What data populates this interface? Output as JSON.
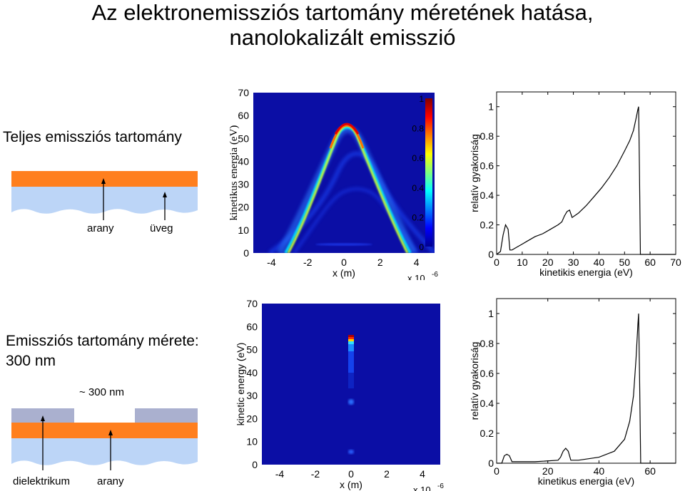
{
  "title": {
    "line1": "Az elektronemissziós tartomány méretének hatása,",
    "line2": "nanolokalizált emisszió"
  },
  "row1": {
    "label": "Teljes emissziós tartomány",
    "diagram": {
      "label_gold": "arany",
      "label_glass": "üveg"
    }
  },
  "row2": {
    "label_line1": "Emissziós tartomány mérete:",
    "label_line2": "300 nm",
    "diagram": {
      "label_width": "~ 300 nm",
      "label_dielectric": "dielektrikum",
      "label_gold": "arany"
    }
  },
  "colors": {
    "gold": "#ff7f1e",
    "glass": "#bcd5f7",
    "dielectric": "#aab0cf",
    "heatmap_bg": "#0b0ea5"
  },
  "chart_data": [
    {
      "id": "heatmap-top",
      "type": "heatmap",
      "xlabel": "x (m)",
      "xscale_label": "x 10",
      "xscale_exp": "-6",
      "ylabel": "kinetikus energia (eV)",
      "xlim": [
        -5,
        5
      ],
      "ylim": [
        0,
        70
      ],
      "xticks": [
        "-4",
        "-2",
        "0",
        "2",
        "4"
      ],
      "yticks": [
        "0",
        "10",
        "20",
        "30",
        "40",
        "50",
        "60",
        "70"
      ],
      "colorbar_ticks": [
        "0",
        "0.2",
        "0.4",
        "0.6",
        "0.8",
        "1"
      ],
      "colorbar": true
    },
    {
      "id": "line-top",
      "type": "line",
      "xlabel": "kinetikis energia (eV)",
      "ylabel": "relatív gyakoriság",
      "xlim": [
        0,
        70
      ],
      "ylim": [
        0,
        1.1
      ],
      "xticks": [
        "0",
        "10",
        "20",
        "30",
        "40",
        "50",
        "60",
        "70"
      ],
      "yticks": [
        "0",
        "0.2",
        "0.4",
        "0.6",
        "0.8",
        "1"
      ],
      "series": [
        {
          "x": [
            0,
            1.5,
            2.5,
            3.5,
            4.5,
            5.2,
            6,
            8,
            10,
            12,
            15,
            18,
            21,
            24,
            25.5,
            26.5,
            27.5,
            28.5,
            29.5,
            32,
            35,
            38,
            41,
            44,
            47,
            50,
            52,
            53.5,
            54.5,
            55.2,
            55.5,
            55.8,
            56.2,
            70
          ],
          "y": [
            0,
            0.02,
            0.13,
            0.2,
            0.17,
            0.03,
            0.03,
            0.05,
            0.07,
            0.09,
            0.12,
            0.14,
            0.17,
            0.2,
            0.22,
            0.26,
            0.29,
            0.3,
            0.25,
            0.28,
            0.33,
            0.39,
            0.45,
            0.52,
            0.6,
            0.7,
            0.77,
            0.84,
            0.92,
            0.98,
            1.0,
            0.6,
            0.0,
            0.0
          ]
        }
      ]
    },
    {
      "id": "heatmap-bottom",
      "type": "heatmap",
      "xlabel": "x (m)",
      "xscale_label": "x 10",
      "xscale_exp": "-6",
      "ylabel": "kinetic energy (eV)",
      "xlim": [
        -5,
        5
      ],
      "ylim": [
        0,
        70
      ],
      "xticks": [
        "-4",
        "-2",
        "0",
        "2",
        "4"
      ],
      "yticks": [
        "0",
        "10",
        "20",
        "30",
        "40",
        "50",
        "60",
        "70"
      ],
      "colorbar": false
    },
    {
      "id": "line-bottom",
      "type": "line",
      "xlabel": "kinetikus energia (eV)",
      "ylabel": "relatív gyakoriság",
      "xlim": [
        0,
        70
      ],
      "ylim": [
        0,
        1.1
      ],
      "xticks": [
        "0",
        "20",
        "40",
        "60"
      ],
      "yticks": [
        "0",
        "0.2",
        "0.4",
        "0.6",
        "0.8",
        "1"
      ],
      "series": [
        {
          "x": [
            0,
            2,
            3,
            4,
            5,
            6,
            8,
            15,
            24,
            25,
            26,
            27,
            28,
            29,
            32,
            40,
            46,
            50,
            52,
            53.5,
            54.5,
            55.2,
            55.5,
            55.9,
            56.3,
            70
          ],
          "y": [
            0,
            0.0,
            0.05,
            0.06,
            0.05,
            0.01,
            0.01,
            0.01,
            0.02,
            0.04,
            0.08,
            0.1,
            0.08,
            0.02,
            0.02,
            0.04,
            0.08,
            0.16,
            0.28,
            0.45,
            0.7,
            0.92,
            1.0,
            0.55,
            0.0,
            0.0
          ]
        }
      ]
    }
  ]
}
